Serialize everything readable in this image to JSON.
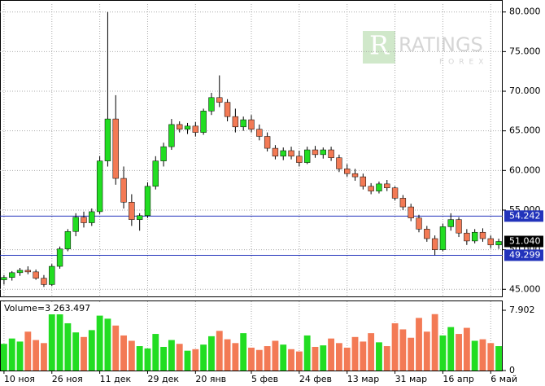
{
  "chart_data": {
    "type": "candlestick",
    "watermark": [
      "RATINGS",
      "FOREX"
    ],
    "categories": [
      "10 ноя",
      null,
      null,
      null,
      null,
      null,
      "26 ноя",
      null,
      null,
      null,
      null,
      null,
      "11 дек",
      null,
      null,
      null,
      null,
      null,
      "29 дек",
      null,
      null,
      null,
      null,
      null,
      "20 янв",
      null,
      null,
      null,
      null,
      null,
      null,
      "5 фев",
      null,
      null,
      null,
      null,
      null,
      "24 фев",
      null,
      null,
      null,
      null,
      null,
      "13 мар",
      null,
      null,
      null,
      null,
      null,
      "31 мар",
      null,
      null,
      null,
      null,
      null,
      "16 апр",
      null,
      null,
      null,
      null,
      null,
      "6 май",
      null
    ],
    "ohlc": [
      [
        46.2,
        46.8,
        45.6,
        46.5
      ],
      [
        46.5,
        47.3,
        46.1,
        47.1
      ],
      [
        47.1,
        47.7,
        46.7,
        47.4
      ],
      [
        47.4,
        47.9,
        46.9,
        47.2
      ],
      [
        47.2,
        47.5,
        46.2,
        46.4
      ],
      [
        46.4,
        46.8,
        45.3,
        45.6
      ],
      [
        45.6,
        48.2,
        45.4,
        47.9
      ],
      [
        47.9,
        50.4,
        47.6,
        50.1
      ],
      [
        50.1,
        52.6,
        49.8,
        52.3
      ],
      [
        52.3,
        54.6,
        51.7,
        54.1
      ],
      [
        54.1,
        54.8,
        52.8,
        53.4
      ],
      [
        53.4,
        55.2,
        53.0,
        54.8
      ],
      [
        54.8,
        61.8,
        54.5,
        61.2
      ],
      [
        61.2,
        80.0,
        60.5,
        66.5
      ],
      [
        66.5,
        69.5,
        58.2,
        59.0
      ],
      [
        59.0,
        60.5,
        55.2,
        56.0
      ],
      [
        56.0,
        57.0,
        53.0,
        53.8
      ],
      [
        53.8,
        54.6,
        52.4,
        54.3
      ],
      [
        54.3,
        58.5,
        54.0,
        58.0
      ],
      [
        58.0,
        61.8,
        57.6,
        61.2
      ],
      [
        61.2,
        63.5,
        60.5,
        63.0
      ],
      [
        63.0,
        66.5,
        62.6,
        65.8
      ],
      [
        65.8,
        66.2,
        64.8,
        65.2
      ],
      [
        65.2,
        66.0,
        64.6,
        65.6
      ],
      [
        65.6,
        66.1,
        64.3,
        64.8
      ],
      [
        64.8,
        67.8,
        64.5,
        67.5
      ],
      [
        67.5,
        69.8,
        67.0,
        69.2
      ],
      [
        69.2,
        72.0,
        68.0,
        68.6
      ],
      [
        68.6,
        69.0,
        66.2,
        66.8
      ],
      [
        66.8,
        67.8,
        64.8,
        65.5
      ],
      [
        65.5,
        66.8,
        65.0,
        66.4
      ],
      [
        66.4,
        67.0,
        64.8,
        65.2
      ],
      [
        65.2,
        65.8,
        63.8,
        64.3
      ],
      [
        64.3,
        64.8,
        62.4,
        62.8
      ],
      [
        62.8,
        63.2,
        61.4,
        61.8
      ],
      [
        61.8,
        62.9,
        61.3,
        62.5
      ],
      [
        62.5,
        63.0,
        61.4,
        61.8
      ],
      [
        61.8,
        62.5,
        60.5,
        61.0
      ],
      [
        61.0,
        63.0,
        60.8,
        62.6
      ],
      [
        62.6,
        63.1,
        61.6,
        62.0
      ],
      [
        62.0,
        62.9,
        61.5,
        62.6
      ],
      [
        62.6,
        63.0,
        61.2,
        61.6
      ],
      [
        61.6,
        62.0,
        59.8,
        60.2
      ],
      [
        60.2,
        60.8,
        59.2,
        59.6
      ],
      [
        59.6,
        60.2,
        58.7,
        59.2
      ],
      [
        59.2,
        59.6,
        57.6,
        58.0
      ],
      [
        58.0,
        58.4,
        57.0,
        57.4
      ],
      [
        57.4,
        58.6,
        57.1,
        58.3
      ],
      [
        58.3,
        58.8,
        57.4,
        57.8
      ],
      [
        57.8,
        58.0,
        56.2,
        56.5
      ],
      [
        56.5,
        56.9,
        55.0,
        55.4
      ],
      [
        55.4,
        55.8,
        53.6,
        54.0
      ],
      [
        54.0,
        54.4,
        52.2,
        52.6
      ],
      [
        52.6,
        53.0,
        51.0,
        51.4
      ],
      [
        51.4,
        51.8,
        49.3,
        50.0
      ],
      [
        50.0,
        53.3,
        49.8,
        52.9
      ],
      [
        52.9,
        54.6,
        52.4,
        53.8
      ],
      [
        53.8,
        54.1,
        51.6,
        52.1
      ],
      [
        52.1,
        52.6,
        50.6,
        51.1
      ],
      [
        51.1,
        52.6,
        50.8,
        52.2
      ],
      [
        52.2,
        52.7,
        51.0,
        51.4
      ],
      [
        51.4,
        51.8,
        50.2,
        50.6
      ],
      [
        50.6,
        51.4,
        50.1,
        51.04
      ]
    ],
    "up_color": "#22dd22",
    "down_color": "#f37a55",
    "ylim": [
      44,
      81
    ],
    "yticks": [
      {
        "value": 45,
        "label": "45.000"
      },
      {
        "value": 50,
        "label": "50.000"
      },
      {
        "value": 55,
        "label": "55.000"
      },
      {
        "value": 60,
        "label": "60.000"
      },
      {
        "value": 65,
        "label": "65.000"
      },
      {
        "value": 70,
        "label": "70.000"
      },
      {
        "value": 75,
        "label": "75.000"
      },
      {
        "value": 80,
        "label": "80.000"
      }
    ],
    "levels": [
      {
        "value": 54.242,
        "color": "#2233bb"
      },
      {
        "value": 49.299,
        "color": "#2233bb"
      }
    ],
    "last_price": {
      "value": 51.04,
      "label": "51.040"
    },
    "grid": true,
    "volume_label": "Volume=3 263.497",
    "volume": [
      3.5,
      4.2,
      3.8,
      5.1,
      4.0,
      3.6,
      7.8,
      8.3,
      6.2,
      5.0,
      4.4,
      5.3,
      7.2,
      6.8,
      5.9,
      4.6,
      3.9,
      3.2,
      2.9,
      4.8,
      3.1,
      4.0,
      3.5,
      2.6,
      2.8,
      3.4,
      4.5,
      5.2,
      4.1,
      3.6,
      4.9,
      3.0,
      2.7,
      3.2,
      3.9,
      3.4,
      2.8,
      2.5,
      4.6,
      3.1,
      3.3,
      4.2,
      3.6,
      3.0,
      4.4,
      3.8,
      4.9,
      3.7,
      3.2,
      6.2,
      5.4,
      4.3,
      6.9,
      5.1,
      7.4,
      4.6,
      5.7,
      4.8,
      5.6,
      3.9,
      4.1,
      3.6,
      3.2
    ],
    "volume_ylim": [
      0,
      9.08
    ],
    "volume_yticks": [
      0,
      7.902
    ]
  }
}
